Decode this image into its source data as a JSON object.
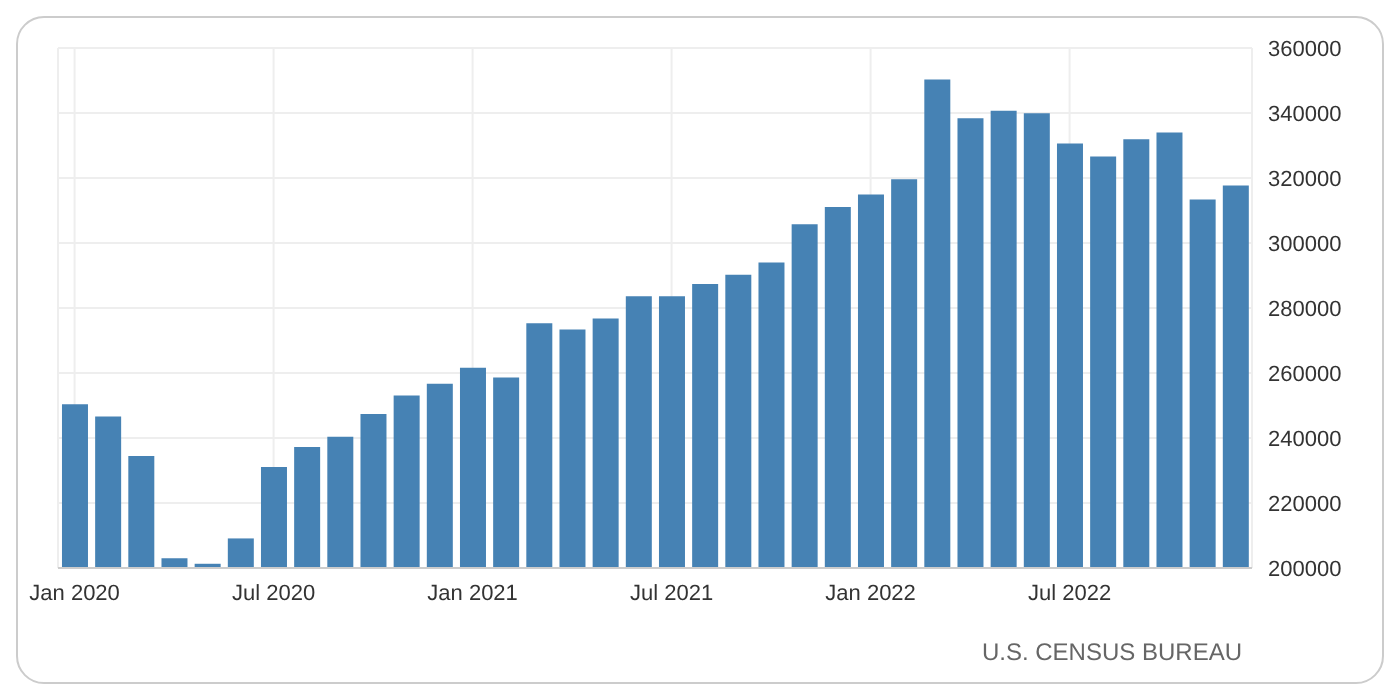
{
  "chart_data": {
    "type": "bar",
    "categories": [
      "Jan 2020",
      null,
      null,
      null,
      null,
      null,
      "Jul 2020",
      null,
      null,
      null,
      null,
      null,
      "Jan 2021",
      null,
      null,
      null,
      null,
      null,
      "Jul 2021",
      null,
      null,
      null,
      null,
      null,
      "Jan 2022",
      null,
      null,
      null,
      null,
      null,
      "Jul 2022",
      null,
      null,
      null,
      null,
      null
    ],
    "values": [
      250400,
      246600,
      234500,
      203000,
      201300,
      209100,
      231100,
      237200,
      240400,
      247400,
      253100,
      256700,
      261600,
      258600,
      275300,
      273400,
      276800,
      283600,
      283600,
      287400,
      290200,
      294000,
      305800,
      311100,
      314900,
      319600,
      350300,
      338400,
      340700,
      339900,
      330600,
      326600,
      331900,
      334000,
      313400,
      317700
    ],
    "color": "#4682b4",
    "ylim": [
      200000,
      360000
    ],
    "yticks": [
      200000,
      220000,
      240000,
      260000,
      280000,
      300000,
      320000,
      340000,
      360000
    ],
    "grid": true,
    "annotations": [
      "U.S. CENSUS BUREAU"
    ]
  }
}
